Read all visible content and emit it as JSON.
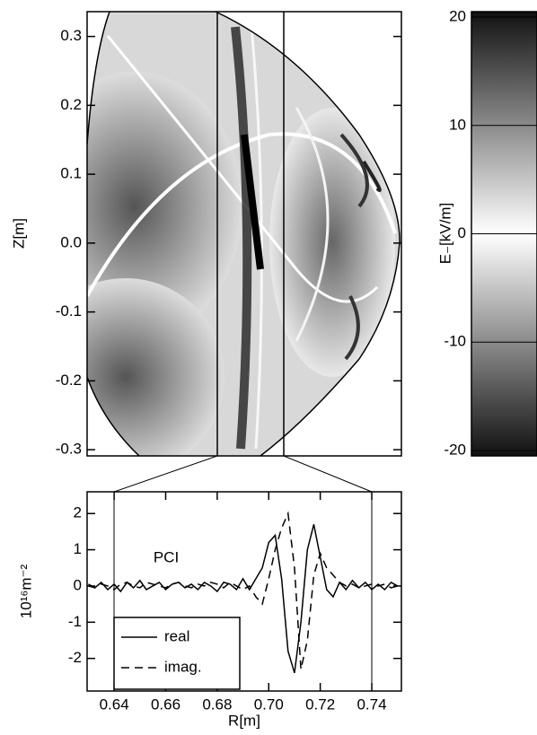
{
  "chart_data": [
    {
      "type": "heatmap",
      "ylabel": "Z[m]",
      "ylim": [
        -0.309,
        0.336
      ],
      "yticks": [
        -0.3,
        -0.2,
        -0.1,
        {
          "value": 0,
          "label": "0.0"
        },
        0.1,
        0.2,
        0.3
      ]
    },
    {
      "type": "colorbar",
      "ylabel": "E₋[kV/m]",
      "ylim": [
        -20.5,
        20.5
      ],
      "yticks": [
        -20,
        -10,
        0,
        10,
        20
      ]
    },
    {
      "type": "line",
      "xlabel": "R[m]",
      "ylabel": "10¹⁶m⁻²",
      "annotation": "PCI",
      "legend": "lower left",
      "xlim": [
        0.6295,
        0.7515
      ],
      "ylim": [
        -2.9,
        2.6
      ],
      "xticks": [
        0.64,
        0.66,
        0.68,
        {
          "value": 0.7,
          "label": "0.70"
        },
        0.72,
        0.74
      ],
      "yticks": [
        -2,
        -1,
        0,
        1,
        2
      ],
      "x": [
        0.63,
        0.6325,
        0.635,
        0.6375,
        0.64,
        0.6425,
        0.645,
        0.6475,
        0.65,
        0.6525,
        0.655,
        0.6575,
        0.66,
        0.6625,
        0.665,
        0.6675,
        0.67,
        0.6725,
        0.675,
        0.6775,
        0.68,
        0.6825,
        0.685,
        0.6875,
        0.69,
        0.6925,
        0.695,
        0.6975,
        0.7,
        0.7025,
        0.705,
        0.7075,
        0.71,
        0.7125,
        0.715,
        0.7175,
        0.72,
        0.7225,
        0.725,
        0.7275,
        0.73,
        0.7325,
        0.735,
        0.7375,
        0.74,
        0.7425,
        0.745,
        0.7475,
        0.75
      ],
      "series": [
        {
          "name": "real",
          "color": "#000000",
          "linestyle": "solid",
          "values": [
            0.05,
            -0.05,
            0.1,
            -0.1,
            0.05,
            -0.15,
            0.1,
            -0.05,
            0.15,
            -0.1,
            0.0,
            0.1,
            -0.1,
            0.05,
            0.1,
            -0.05,
            0.05,
            -0.1,
            0.1,
            0.0,
            -0.15,
            0.1,
            0.05,
            -0.1,
            0.2,
            -0.1,
            0.2,
            0.5,
            1.2,
            1.4,
            0.2,
            -1.8,
            -2.4,
            -1.0,
            1.0,
            1.7,
            0.8,
            -0.1,
            -0.3,
            0.1,
            -0.1,
            0.15,
            -0.05,
            0.1,
            -0.1,
            0.05,
            -0.1,
            0.1,
            0.0
          ]
        },
        {
          "name": "imag.",
          "color": "#000000",
          "linestyle": "dashed",
          "values": [
            0.0,
            -0.05,
            0.05,
            0.0,
            -0.1,
            0.05,
            0.1,
            0.0,
            -0.05,
            0.1,
            0.05,
            0.0,
            -0.05,
            0.05,
            0.1,
            0.0,
            -0.05,
            0.05,
            0.0,
            0.1,
            0.05,
            -0.05,
            0.1,
            0.0,
            -0.1,
            0.0,
            -0.3,
            -0.5,
            0.2,
            1.0,
            1.6,
            2.0,
            0.5,
            -2.3,
            -1.5,
            0.3,
            0.9,
            0.5,
            0.3,
            0.1,
            0.0,
            0.05,
            -0.05,
            0.0,
            0.05,
            0.0,
            0.05,
            -0.05,
            0.0
          ]
        }
      ]
    }
  ]
}
